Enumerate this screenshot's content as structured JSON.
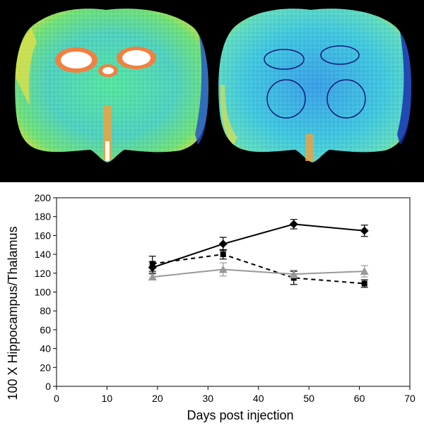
{
  "images": {
    "left_icon": "brain-scan-coronal-hot",
    "right_icon": "brain-scan-coronal-roi"
  },
  "chart_data": {
    "type": "line",
    "title": "",
    "xlabel": "Days post injection",
    "ylabel": "100 X Hippocampus/Thalamus",
    "xlim": [
      0,
      70
    ],
    "ylim": [
      0,
      200
    ],
    "xticks": [
      0,
      10,
      20,
      30,
      40,
      50,
      60,
      70
    ],
    "yticks": [
      0,
      20,
      40,
      60,
      80,
      100,
      120,
      140,
      160,
      180,
      200
    ],
    "grid": false,
    "series": [
      {
        "marker": "diamond",
        "color": "#000000",
        "line": "solid",
        "x": [
          19,
          33,
          47,
          61
        ],
        "y": [
          126,
          151,
          172,
          165
        ],
        "err": [
          6,
          7,
          5,
          6
        ]
      },
      {
        "marker": "square",
        "color": "#000000",
        "line": "dashed",
        "x": [
          19,
          33,
          47,
          61
        ],
        "y": [
          130,
          140,
          115,
          109
        ],
        "err": [
          8,
          5,
          7,
          4
        ]
      },
      {
        "marker": "triangle",
        "color": "#999999",
        "line": "solid",
        "x": [
          19,
          33,
          47,
          61
        ],
        "y": [
          116,
          124,
          119,
          122
        ],
        "err": [
          3,
          7,
          4,
          6
        ]
      }
    ]
  }
}
